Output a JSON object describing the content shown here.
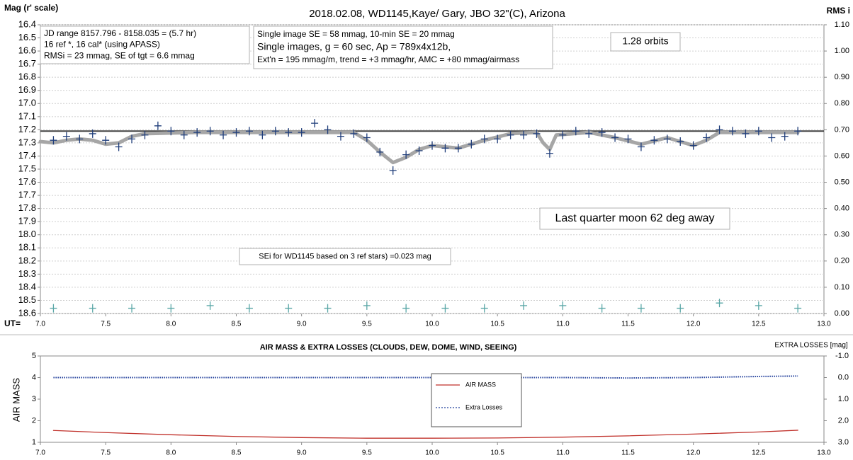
{
  "chart_data": [
    {
      "type": "scatter",
      "title": "2018.02.08,  WD1145,Kaye/ Gary, JBO 32\"(C), Arizona",
      "ylabel": "Mag (r' scale)",
      "y2label": "RMS i",
      "xlabel": "UT=",
      "xlim": [
        7,
        13
      ],
      "xticks": [
        {
          "value": 7,
          "label": "7.0"
        },
        7.5,
        {
          "value": 8,
          "label": "8.0"
        },
        8.5,
        {
          "value": 9,
          "label": "9.0"
        },
        9.5,
        {
          "value": 10,
          "label": "10.0"
        },
        10.5,
        {
          "value": 11,
          "label": "11.0"
        },
        11.5,
        {
          "value": 12,
          "label": "12.0"
        },
        12.5,
        {
          "value": 13,
          "label": "13.0"
        }
      ],
      "ylim": [
        18.6,
        16.4
      ],
      "yticks": [
        16.4,
        16.5,
        16.6,
        16.7,
        16.8,
        16.9,
        {
          "value": 17,
          "label": "17.0"
        },
        17.1,
        17.2,
        17.3,
        17.4,
        17.5,
        17.6,
        17.7,
        17.8,
        17.9,
        {
          "value": 18,
          "label": "18.0"
        },
        18.1,
        18.2,
        18.3,
        18.4,
        18.5,
        18.6
      ],
      "y2lim": [
        0,
        1.1
      ],
      "y2ticks": [
        {
          "value": 0,
          "label": "0.00"
        },
        {
          "value": 0.1,
          "label": "0.10"
        },
        {
          "value": 0.2,
          "label": "0.20"
        },
        {
          "value": 0.3,
          "label": "0.30"
        },
        {
          "value": 0.4,
          "label": "0.40"
        },
        {
          "value": 0.5,
          "label": "0.50"
        },
        {
          "value": 0.6,
          "label": "0.60"
        },
        {
          "value": 0.7,
          "label": "0.70"
        },
        {
          "value": 0.8,
          "label": "0.80"
        },
        {
          "value": 0.9,
          "label": "0.90"
        },
        {
          "value": 1.0,
          "label": "1.00"
        },
        {
          "value": 1.1,
          "label": "1.10"
        }
      ],
      "grid": true,
      "reference_level": 17.21,
      "series": [
        {
          "style": "line",
          "color": "#a6a6a6",
          "x": [
            7.0,
            7.1,
            7.2,
            7.3,
            7.4,
            7.5,
            7.6,
            7.7,
            7.8,
            8.2,
            8.8,
            9.4,
            9.5,
            9.6,
            9.7,
            9.8,
            9.9,
            10.0,
            10.2,
            10.4,
            10.6,
            10.8,
            10.85,
            10.9,
            10.95,
            11.2,
            11.4,
            11.6,
            11.8,
            12.0,
            12.1,
            12.2,
            12.8
          ],
          "values": [
            17.29,
            17.3,
            17.28,
            17.27,
            17.28,
            17.31,
            17.3,
            17.25,
            17.23,
            17.22,
            17.22,
            17.22,
            17.28,
            17.37,
            17.45,
            17.41,
            17.35,
            17.32,
            17.34,
            17.28,
            17.23,
            17.22,
            17.3,
            17.35,
            17.24,
            17.22,
            17.26,
            17.31,
            17.26,
            17.32,
            17.28,
            17.22,
            17.22
          ]
        },
        {
          "style": "plus",
          "color": "#1f3d7a",
          "x": [
            7.1,
            7.2,
            7.3,
            7.4,
            7.5,
            7.6,
            7.7,
            7.8,
            7.9,
            8.0,
            8.1,
            8.2,
            8.3,
            8.4,
            8.5,
            8.6,
            8.7,
            8.8,
            8.9,
            9.0,
            9.1,
            9.2,
            9.3,
            9.4,
            9.5,
            9.6,
            9.7,
            9.8,
            9.9,
            10.0,
            10.1,
            10.2,
            10.3,
            10.4,
            10.5,
            10.6,
            10.7,
            10.8,
            10.9,
            11.0,
            11.1,
            11.2,
            11.3,
            11.4,
            11.5,
            11.6,
            11.7,
            11.8,
            11.9,
            12.0,
            12.1,
            12.2,
            12.3,
            12.4,
            12.5,
            12.6,
            12.7,
            12.8
          ],
          "values": [
            17.28,
            17.25,
            17.27,
            17.23,
            17.28,
            17.33,
            17.27,
            17.24,
            17.17,
            17.21,
            17.24,
            17.22,
            17.21,
            17.24,
            17.22,
            17.21,
            17.24,
            17.21,
            17.22,
            17.22,
            17.15,
            17.2,
            17.25,
            17.23,
            17.26,
            17.37,
            17.51,
            17.39,
            17.36,
            17.32,
            17.34,
            17.34,
            17.31,
            17.27,
            17.27,
            17.24,
            17.24,
            17.23,
            17.38,
            17.24,
            17.21,
            17.23,
            17.22,
            17.26,
            17.27,
            17.33,
            17.28,
            17.27,
            17.29,
            17.32,
            17.26,
            17.2,
            17.21,
            17.23,
            17.21,
            17.26,
            17.25,
            17.21
          ]
        },
        {
          "style": "plus",
          "axis": "y2",
          "color": "#5aa7a7",
          "x": [
            7.1,
            7.4,
            7.7,
            8.0,
            8.3,
            8.6,
            8.9,
            9.2,
            9.5,
            9.8,
            10.1,
            10.4,
            10.7,
            11.0,
            11.3,
            11.6,
            11.9,
            12.2,
            12.5,
            12.8
          ],
          "values": [
            0.02,
            0.02,
            0.02,
            0.02,
            0.03,
            0.02,
            0.02,
            0.02,
            0.03,
            0.02,
            0.02,
            0.02,
            0.03,
            0.03,
            0.02,
            0.02,
            0.02,
            0.04,
            0.03,
            0.02
          ]
        }
      ],
      "annotations": [
        {
          "lines": [
            "JD range  8157.796 - 8158.035  = (5.7 hr)",
            "16 ref *, 16 cal* (using APASS)",
            "RMSi = 23 mmag, SE of tgt = 6.6 mmag"
          ]
        },
        {
          "lines": [
            "Single image SE = 58 mmag, 10-min SE = 20 mmag",
            "Single images, g = 60 sec, Ap = 789x4x12b,",
            "Ext'n = 195 mmag/m, trend = +3 mmag/hr, AMC = +80 mmag/airmass"
          ]
        },
        {
          "lines": [
            "1.28 orbits"
          ]
        },
        {
          "lines": [
            "Last quarter moon 62 deg away"
          ]
        },
        {
          "lines": [
            "SEi for WD1145 based on 3 ref stars) =0.023 mag"
          ]
        }
      ]
    },
    {
      "type": "line",
      "title": "AIR MASS & EXTRA LOSSES (CLOUDS, DEW, DOME, WIND, SEEING)",
      "ylabel": "AIR MASS",
      "y2label": "EXTRA LOSSES [mag]",
      "xlim": [
        7,
        13
      ],
      "xticks": [
        {
          "value": 7,
          "label": "7.0"
        },
        7.5,
        {
          "value": 8,
          "label": "8.0"
        },
        8.5,
        {
          "value": 9,
          "label": "9.0"
        },
        9.5,
        {
          "value": 10,
          "label": "10.0"
        },
        10.5,
        {
          "value": 11,
          "label": "11.0"
        },
        11.5,
        {
          "value": 12,
          "label": "12.0"
        },
        12.5,
        {
          "value": 13,
          "label": "13.0"
        }
      ],
      "ylim": [
        1,
        5
      ],
      "yticks": [
        1,
        2,
        3,
        4,
        5
      ],
      "y2lim": [
        3,
        -1
      ],
      "y2ticks": [
        {
          "value": -1,
          "label": "-1.0"
        },
        {
          "value": 0,
          "label": "0.0"
        },
        {
          "value": 1,
          "label": "1.0"
        },
        {
          "value": 2,
          "label": "2.0"
        },
        {
          "value": 3,
          "label": "3.0"
        }
      ],
      "legend": "bottom",
      "series": [
        {
          "name": "AIR MASS",
          "style": "line",
          "color": "#c0302a",
          "x": [
            7.1,
            7.5,
            8.0,
            8.5,
            9.0,
            9.5,
            10.0,
            10.5,
            11.0,
            11.5,
            12.0,
            12.5,
            12.8
          ],
          "values": [
            1.55,
            1.45,
            1.35,
            1.27,
            1.22,
            1.19,
            1.19,
            1.2,
            1.24,
            1.3,
            1.38,
            1.48,
            1.56
          ]
        },
        {
          "name": "Extra Losses",
          "style": "dotted",
          "axis": "y2",
          "color": "#1f3d9a",
          "x": [
            7.1,
            7.5,
            8.0,
            8.5,
            9.0,
            9.5,
            10.0,
            10.2,
            10.5,
            11.0,
            11.5,
            12.0,
            12.5,
            12.8
          ],
          "values": [
            0.0,
            0.0,
            0.0,
            0.0,
            0.0,
            0.0,
            0.0,
            0.02,
            0.0,
            0.0,
            0.02,
            0.0,
            -0.05,
            -0.07
          ]
        }
      ]
    }
  ]
}
